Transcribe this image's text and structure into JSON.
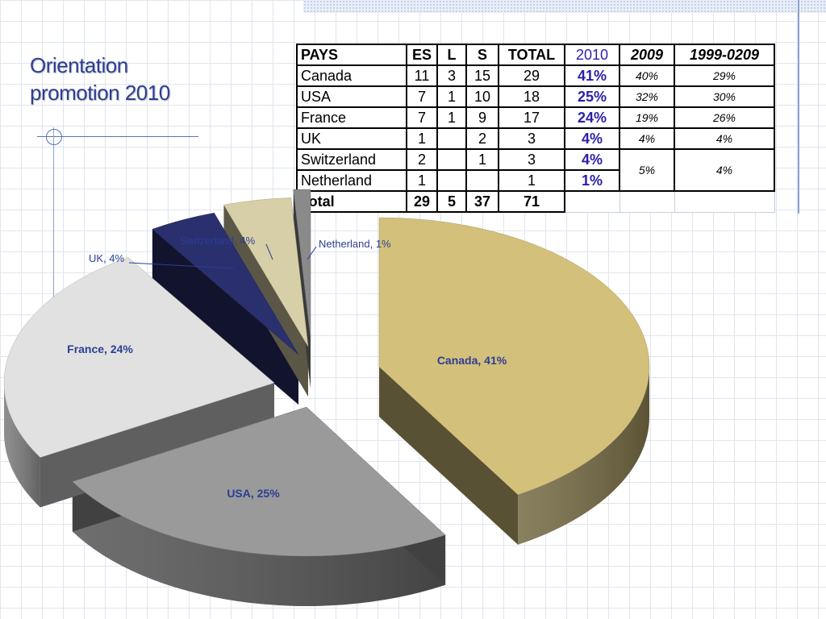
{
  "title_line1": "Orientation",
  "title_line2": "promotion 2010",
  "table": {
    "headers": [
      "PAYS",
      "ES",
      "L",
      "S",
      "TOTAL",
      "2010",
      "2009",
      "1999-0209"
    ],
    "rows": [
      [
        "Canada",
        "11",
        "3",
        "15",
        "29",
        "41%",
        "40%",
        "29%"
      ],
      [
        "USA",
        "7",
        "1",
        "10",
        "18",
        "25%",
        "32%",
        "30%"
      ],
      [
        "France",
        "7",
        "1",
        "9",
        "17",
        "24%",
        "19%",
        "26%"
      ],
      [
        "UK",
        "1",
        "",
        "2",
        "3",
        "4%",
        "4%",
        "4%"
      ],
      [
        "Switzerland",
        "2",
        "",
        "1",
        "3",
        "4%",
        "5%",
        "4%"
      ],
      [
        "Netherland",
        "1",
        "",
        "",
        "1",
        "1%",
        "",
        ""
      ]
    ],
    "total": [
      "Total",
      "29",
      "5",
      "37",
      "71"
    ]
  },
  "chart_data": {
    "type": "pie",
    "title": "",
    "categories": [
      "Canada",
      "USA",
      "France",
      "UK",
      "Switzerland",
      "Netherland"
    ],
    "values": [
      41,
      25,
      24,
      4,
      4,
      1
    ],
    "labels": [
      "Canada, 41%",
      "USA, 25%",
      "France, 24%",
      "UK, 4%",
      "Switzerland, 4%",
      "Netherland, 1%"
    ],
    "colors": [
      "#d3c07a",
      "#9a9a9a",
      "#e1e1e1",
      "#2a2f6e",
      "#d6cfa8",
      "#8a8a8a"
    ],
    "style": "3d-exploded"
  }
}
